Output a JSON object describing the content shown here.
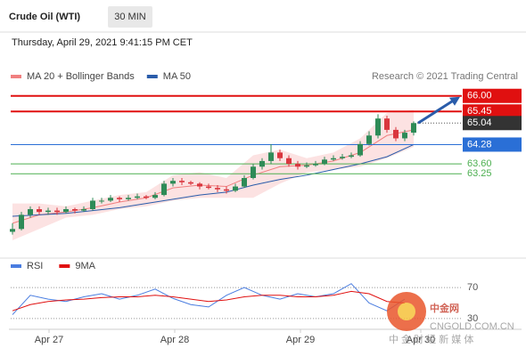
{
  "header": {
    "title": "Crude Oil (WTI)",
    "interval": "30 MIN",
    "datetime": "Thursday, April 29, 2021 9:41:15 PM CET"
  },
  "chart_data": [
    {
      "type": "candlestick",
      "legend": [
        {
          "name": "MA 20 + Bollinger Bands",
          "color": "#f08080"
        },
        {
          "name": "MA 50",
          "color": "#2a5caa"
        }
      ],
      "credit": "Research © 2021 Trading Central",
      "up_color": "#2e8b57",
      "down_color": "#d9363e",
      "open": [
        61.2,
        61.3,
        61.8,
        62.0,
        61.9,
        61.95,
        61.9,
        62.0,
        61.95,
        62.0,
        62.3,
        62.3,
        62.4,
        62.35,
        62.4,
        62.45,
        62.4,
        62.5,
        62.9,
        63.0,
        62.95,
        62.9,
        62.8,
        62.75,
        62.7,
        62.65,
        62.8,
        63.1,
        63.5,
        63.7,
        64.0,
        63.8,
        63.6,
        63.5,
        63.55,
        63.6,
        63.75,
        63.8,
        63.85,
        63.9,
        64.3,
        64.6,
        65.2,
        64.8,
        64.5,
        64.7
      ],
      "close": [
        61.3,
        61.8,
        62.0,
        61.9,
        61.95,
        61.9,
        62.0,
        61.95,
        62.0,
        62.3,
        62.3,
        62.4,
        62.35,
        62.4,
        62.45,
        62.4,
        62.5,
        62.9,
        63.0,
        62.95,
        62.9,
        62.8,
        62.75,
        62.7,
        62.65,
        62.8,
        63.1,
        63.5,
        63.7,
        64.0,
        63.8,
        63.6,
        63.5,
        63.55,
        63.6,
        63.75,
        63.8,
        63.85,
        63.9,
        64.3,
        64.6,
        65.2,
        64.8,
        64.5,
        64.7,
        65.04
      ],
      "high": [
        61.5,
        61.9,
        62.1,
        62.1,
        62.05,
        62.05,
        62.1,
        62.05,
        62.1,
        62.4,
        62.4,
        62.5,
        62.45,
        62.5,
        62.55,
        62.5,
        62.6,
        63.0,
        63.1,
        63.1,
        63.0,
        62.95,
        62.9,
        62.85,
        62.8,
        62.9,
        63.2,
        63.6,
        63.8,
        64.3,
        64.1,
        63.9,
        63.7,
        63.65,
        63.7,
        63.85,
        63.9,
        63.95,
        64.0,
        64.4,
        64.75,
        65.35,
        65.3,
        64.9,
        64.8,
        65.1
      ],
      "low": [
        61.1,
        61.25,
        61.7,
        61.8,
        61.8,
        61.8,
        61.85,
        61.85,
        61.9,
        61.95,
        62.2,
        62.25,
        62.25,
        62.3,
        62.35,
        62.35,
        62.35,
        62.45,
        62.8,
        62.85,
        62.85,
        62.7,
        62.7,
        62.6,
        62.55,
        62.6,
        62.75,
        63.05,
        63.4,
        63.6,
        63.7,
        63.5,
        63.4,
        63.45,
        63.5,
        63.55,
        63.7,
        63.75,
        63.8,
        63.85,
        64.25,
        64.5,
        64.7,
        64.4,
        64.4,
        64.6
      ],
      "indicator_x": [
        0,
        3,
        6,
        9,
        12,
        15,
        18,
        21,
        24,
        27,
        30,
        33,
        36,
        39,
        42,
        45
      ],
      "ma20": [
        61.5,
        61.8,
        61.9,
        62.05,
        62.25,
        62.4,
        62.75,
        62.85,
        62.8,
        63.2,
        63.5,
        63.55,
        63.7,
        64.0,
        64.6,
        64.8
      ],
      "ma50": [
        61.75,
        61.8,
        61.85,
        61.95,
        62.05,
        62.2,
        62.35,
        62.5,
        62.6,
        62.85,
        63.05,
        63.2,
        63.4,
        63.6,
        63.85,
        64.28
      ],
      "band_upper": [
        62.2,
        62.2,
        62.1,
        62.3,
        62.5,
        62.6,
        63.2,
        63.3,
        63.1,
        63.9,
        64.1,
        63.8,
        64.0,
        64.5,
        65.4,
        65.5
      ],
      "band_lower": [
        60.9,
        61.3,
        61.7,
        61.8,
        62.0,
        62.1,
        62.3,
        62.4,
        62.4,
        62.4,
        62.9,
        63.3,
        63.4,
        63.5,
        63.8,
        64.2
      ],
      "levels": [
        {
          "value": 66.0,
          "label": "66.00",
          "color": "#e01010",
          "style": "box"
        },
        {
          "value": 65.45,
          "label": "65.45",
          "color": "#e01010",
          "style": "box"
        },
        {
          "value": 65.04,
          "label": "65.04",
          "color": "#333333",
          "style": "price"
        },
        {
          "value": 64.28,
          "label": "64.28",
          "color": "#2a6fd6",
          "style": "box"
        },
        {
          "value": 63.6,
          "label": "63.60",
          "color": "#4caf50",
          "style": "text"
        },
        {
          "value": 63.25,
          "label": "63.25",
          "color": "#4caf50",
          "style": "text"
        }
      ],
      "xlim": [
        -0.2,
        57.1
      ],
      "ylim": [
        60.9,
        66.4
      ],
      "xticks": [
        {
          "value": 4.1,
          "label": "Apr 27"
        },
        {
          "value": 18.2,
          "label": "Apr 28"
        },
        {
          "value": 32.3,
          "label": "Apr 29"
        },
        {
          "value": 45.8,
          "label": "Apr 30"
        }
      ]
    },
    {
      "type": "rsi",
      "series": [
        {
          "name": "RSI",
          "color": "#4a7de0",
          "x": [
            0,
            2,
            4,
            6,
            8,
            10,
            12,
            14,
            16,
            18,
            20,
            22,
            24,
            26,
            28,
            30,
            32,
            34,
            36,
            38,
            40,
            42,
            44
          ],
          "values": [
            35,
            60,
            55,
            52,
            58,
            62,
            55,
            60,
            68,
            56,
            48,
            45,
            60,
            70,
            60,
            55,
            62,
            58,
            62,
            75,
            50,
            40,
            55
          ]
        },
        {
          "name": "9MA",
          "color": "#e01010",
          "x": [
            0,
            2,
            4,
            6,
            8,
            10,
            12,
            14,
            16,
            18,
            20,
            22,
            24,
            26,
            28,
            30,
            32,
            34,
            36,
            38,
            40,
            42,
            44
          ],
          "values": [
            40,
            48,
            52,
            54,
            55,
            57,
            58,
            58,
            60,
            58,
            55,
            52,
            54,
            58,
            60,
            60,
            58,
            58,
            60,
            65,
            62,
            52,
            50
          ]
        }
      ],
      "ylim": [
        15,
        85
      ],
      "yticks": [
        30,
        70
      ]
    }
  ],
  "watermark": {
    "logo": "中金网",
    "site": "CNGOLD.COM.CN",
    "slogan": "中 金 财 经 新 媒 体"
  }
}
